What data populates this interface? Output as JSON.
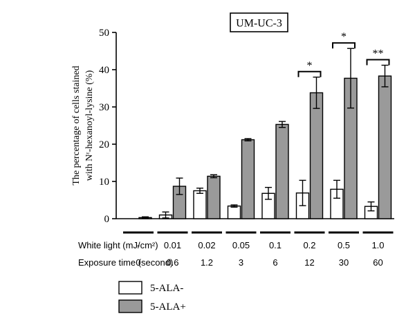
{
  "chart_data": {
    "type": "bar",
    "title": "UM-UC-3",
    "ylabel_line1": "The percentage of cells stained",
    "ylabel_line2": "with Nᵋ-hexanoyl-lysine (%)",
    "ylim": [
      0,
      50
    ],
    "yticks": [
      0,
      10,
      20,
      30,
      40,
      50
    ],
    "grid": false,
    "legend_placement": "bottom-left",
    "row_labels": {
      "white_light": "White light (mJ/cm²)",
      "exposure_time": "Exposure time (second)"
    },
    "white_light": [
      "-",
      "0.01",
      "0.02",
      "0.05",
      "0.1",
      "0.2",
      "0.5",
      "1.0"
    ],
    "exposure_time": [
      "0",
      "0.6",
      "1.2",
      "3",
      "6",
      "12",
      "30",
      "60"
    ],
    "series": [
      {
        "name": "5-ALA-",
        "color": "#ffffff",
        "values": [
          0,
          1.0,
          7.5,
          3.4,
          6.8,
          6.9,
          7.9,
          3.3
        ],
        "errors": [
          0,
          0.8,
          0.7,
          0.3,
          1.6,
          3.4,
          2.4,
          1.2
        ]
      },
      {
        "name": "5-ALA+",
        "color": "#9a9a9a",
        "values": [
          0.3,
          8.7,
          11.4,
          21.2,
          25.3,
          33.8,
          37.7,
          38.3
        ],
        "errors": [
          0.2,
          2.2,
          0.4,
          0.3,
          0.8,
          4.2,
          8.0,
          2.9
        ]
      }
    ],
    "significance": [
      {
        "group": 5,
        "label": "*"
      },
      {
        "group": 6,
        "label": "*"
      },
      {
        "group": 7,
        "label": "**"
      }
    ]
  }
}
